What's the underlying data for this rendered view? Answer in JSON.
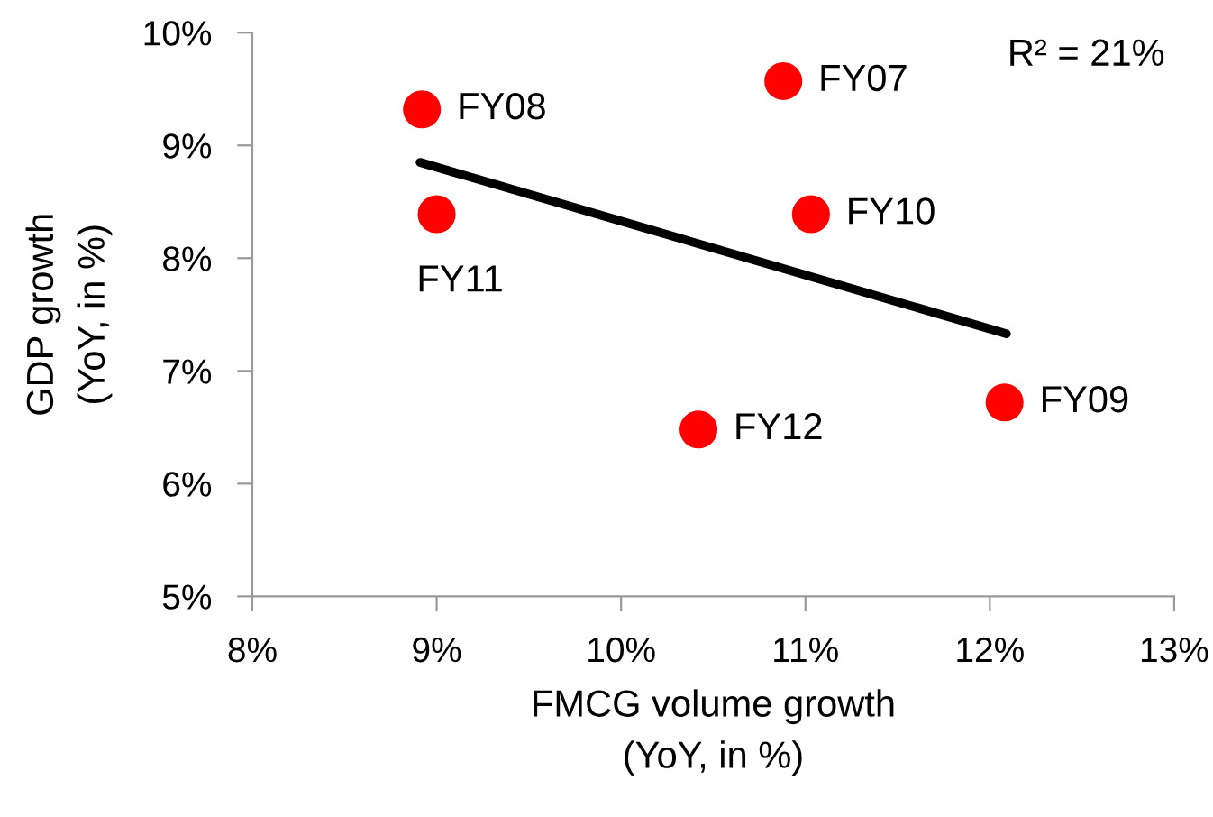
{
  "chart_data": {
    "type": "scatter",
    "xlabel": "FMCG volume growth\n(YoY, in %)",
    "ylabel": "GDP growth\n(YoY, in %)",
    "xlim": [
      8,
      13
    ],
    "xticks": [
      {
        "value": 8,
        "label": "8%"
      },
      {
        "value": 9,
        "label": "9%"
      },
      {
        "value": 10,
        "label": "10%"
      },
      {
        "value": 11,
        "label": "11%"
      },
      {
        "value": 12,
        "label": "12%"
      },
      {
        "value": 13,
        "label": "13%"
      }
    ],
    "ylim": [
      5,
      10
    ],
    "yticks": [
      {
        "value": 5,
        "label": "5%"
      },
      {
        "value": 6,
        "label": "6%"
      },
      {
        "value": 7,
        "label": "7%"
      },
      {
        "value": 8,
        "label": "8%"
      },
      {
        "value": 9,
        "label": "9%"
      },
      {
        "value": 10,
        "label": "10%"
      }
    ],
    "grid": false,
    "legend": false,
    "annotations": [
      "R² = 21%"
    ],
    "series": [
      {
        "marker": "circle",
        "color": "#ff0000",
        "x": [
          10.88,
          8.92,
          12.08,
          11.03,
          9.0,
          10.42
        ],
        "values": [
          9.57,
          9.32,
          6.72,
          8.39,
          8.39,
          6.48
        ],
        "value_labels": [
          "FY07",
          "FY08",
          "FY09",
          "FY10",
          "FY11",
          "FY12"
        ]
      },
      {
        "type": "line",
        "color": "#000000",
        "x": [
          8.91,
          12.09
        ],
        "values": [
          8.85,
          7.33
        ],
        "line_style": "solid"
      }
    ]
  }
}
